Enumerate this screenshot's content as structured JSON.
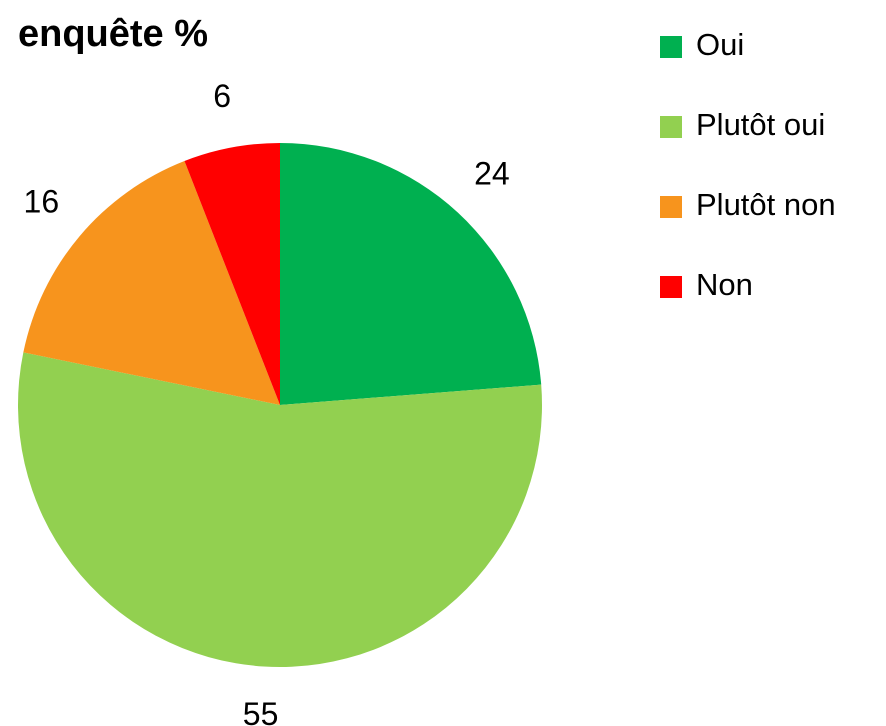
{
  "chart_data": {
    "type": "pie",
    "title": "enquête %",
    "categories": [
      "Oui",
      "Plutôt oui",
      "Plutôt non",
      "Non"
    ],
    "values": [
      24,
      55,
      16,
      6
    ],
    "colors": [
      "#00b050",
      "#92d050",
      "#f7941d",
      "#ff0000"
    ],
    "legend": "right"
  }
}
